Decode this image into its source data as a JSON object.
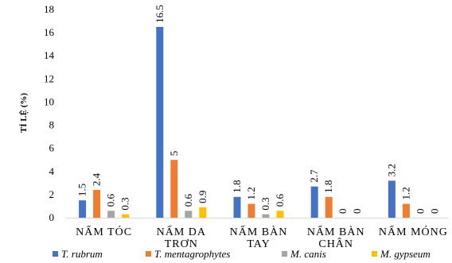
{
  "chart_data": {
    "type": "bar",
    "ylabel": "TỈ LỆ (%)",
    "ylim": [
      0,
      18
    ],
    "yticks": [
      0,
      2,
      4,
      6,
      8,
      10,
      12,
      14,
      16,
      18
    ],
    "grid": false,
    "legend_position": "bottom",
    "categories": [
      [
        "NẤM TÓC"
      ],
      [
        "NẤM DA",
        "TRƠN"
      ],
      [
        "NẤM BÀN",
        "TAY"
      ],
      [
        "NẤM BÀN",
        "CHÂN"
      ],
      [
        "NẤM MÓNG"
      ]
    ],
    "series": [
      {
        "name": "T. rubrum",
        "color": "#4472C4",
        "values": [
          1.5,
          16.5,
          1.8,
          2.7,
          3.2
        ],
        "labels": [
          "1.5",
          "16.5",
          "1.8",
          "2.7",
          "3.2"
        ]
      },
      {
        "name": "T. mentagrophytes",
        "color": "#ED7D31",
        "values": [
          2.4,
          5,
          1.2,
          1.8,
          1.2
        ],
        "labels": [
          "2.4",
          "5",
          "1.2",
          "1.8",
          "1.2"
        ]
      },
      {
        "name": "M. canis",
        "color": "#A5A5A5",
        "values": [
          0.6,
          0.6,
          0.3,
          0,
          0
        ],
        "labels": [
          "0.6",
          "0.6",
          "0.3",
          "0",
          "0"
        ]
      },
      {
        "name": "M. gypseum",
        "color": "#FFC000",
        "values": [
          0.3,
          0.9,
          0.6,
          0,
          0
        ],
        "labels": [
          "0.3",
          "0.9",
          "0.6",
          "0",
          "0"
        ]
      }
    ]
  }
}
